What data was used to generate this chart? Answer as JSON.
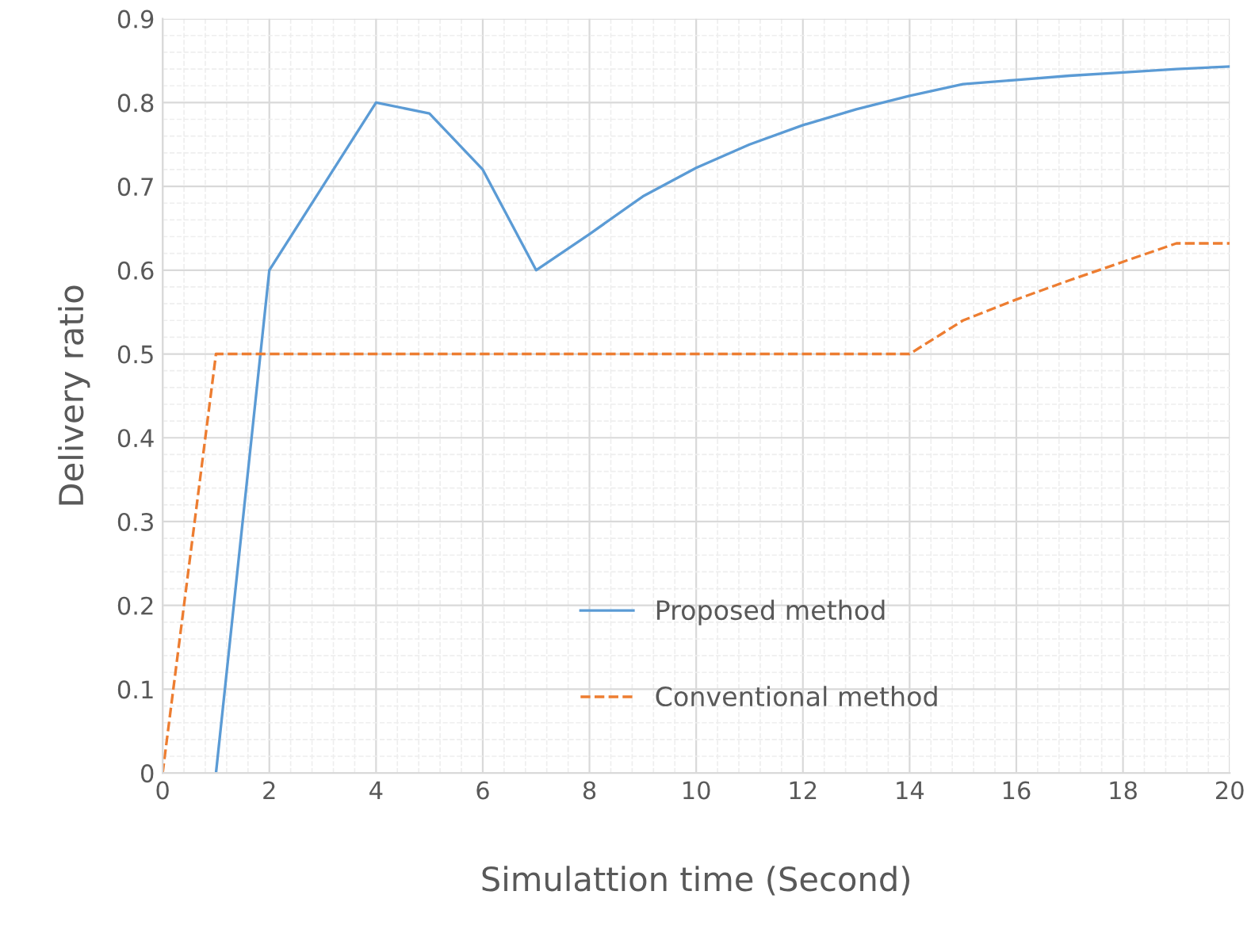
{
  "chart_data": {
    "type": "line",
    "xlabel": "Simulattion time (Second)",
    "ylabel": "Delivery ratio",
    "xlim": [
      0,
      20
    ],
    "xticks": [
      0,
      2,
      4,
      6,
      8,
      10,
      12,
      14,
      16,
      18,
      20
    ],
    "ylim": [
      0,
      0.9
    ],
    "yticks": [
      0,
      0.1,
      0.2,
      0.3,
      0.4,
      0.5,
      0.6,
      0.7,
      0.8,
      0.9
    ],
    "grid": true,
    "legend": "bottom right",
    "marker": "none",
    "series": [
      {
        "name": "Proposed method",
        "color": "#5b9bd5",
        "line_style": "solid",
        "x": [
          1,
          2,
          3,
          4,
          5,
          6,
          7,
          8,
          9,
          10,
          11,
          12,
          13,
          14,
          15,
          16,
          17,
          18,
          19,
          20
        ],
        "values": [
          0,
          0.6,
          0.7,
          0.8,
          0.787,
          0.72,
          0.6,
          0.643,
          0.688,
          0.722,
          0.75,
          0.773,
          0.792,
          0.808,
          0.822,
          0.827,
          0.832,
          0.836,
          0.84,
          0.843
        ]
      },
      {
        "name": "Conventional method",
        "color": "#ed7d31",
        "line_style": "dashed",
        "x": [
          0,
          1,
          2,
          3,
          4,
          5,
          6,
          7,
          8,
          9,
          10,
          11,
          12,
          13,
          14,
          15,
          16,
          17,
          18,
          19,
          20
        ],
        "values": [
          0,
          0.5,
          0.5,
          0.5,
          0.5,
          0.5,
          0.5,
          0.5,
          0.5,
          0.5,
          0.5,
          0.5,
          0.5,
          0.5,
          0.5,
          0.54,
          0.565,
          0.588,
          0.61,
          0.632,
          0.632
        ]
      }
    ]
  }
}
